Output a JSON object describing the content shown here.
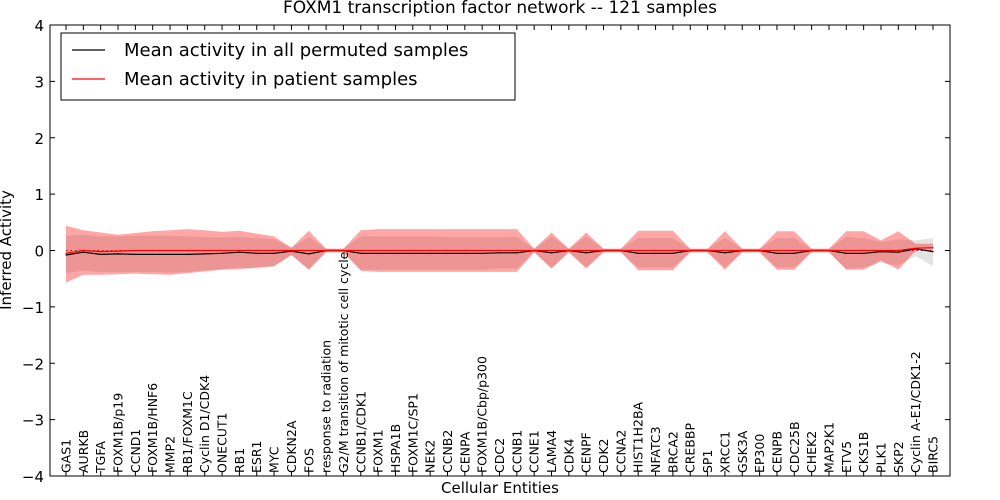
{
  "chart_data": {
    "type": "line",
    "title": "FOXM1 transcription factor network -- 121 samples",
    "xlabel": "Cellular Entities",
    "ylabel": "Inferred Activity",
    "ylim": [
      -4,
      4
    ],
    "yticks": [
      -4,
      -3,
      -2,
      -1,
      0,
      1,
      2,
      3,
      4
    ],
    "ytick_labels": [
      "−4",
      "−3",
      "−2",
      "−1",
      "0",
      "1",
      "2",
      "3",
      "4"
    ],
    "grid": false,
    "legend_position": "top-left",
    "categories": [
      "GAS1",
      "AURKB",
      "TGFA",
      "FOXM1B/p19",
      "CCND1",
      "FOXM1B/HNF6",
      "MMP2",
      "RB1/FOXM1C",
      "Cyclin D1/CDK4",
      "ONECUT1",
      "RB1",
      "ESR1",
      "MYC",
      "CDKN2A",
      "FOS",
      "response to radiation",
      "G2/M transition of mitotic cell cycle",
      "CCNB1/CDK1",
      "FOXM1",
      "HSPA1B",
      "FOXM1C/SP1",
      "NEK2",
      "CCNB2",
      "CENPA",
      "FOXM1B/Cbp/p300",
      "CDC2",
      "CCNB1",
      "CCNE1",
      "LAMA4",
      "CDK4",
      "CENPF",
      "CDK2",
      "CCNA2",
      "HIST1H2BA",
      "NFATC3",
      "BRCA2",
      "CREBBP",
      "SP1",
      "XRCC1",
      "GSK3A",
      "EP300",
      "CENPB",
      "CDC25B",
      "CHEK2",
      "MAP2K1",
      "ETV5",
      "CKS1B",
      "PLK1",
      "SKP2",
      "Cyclin A-E1/CDK1-2",
      "BIRC5"
    ],
    "series": [
      {
        "name": "Mean activity in all permuted samples",
        "color": "#000000",
        "values": [
          -0.08,
          -0.03,
          -0.07,
          -0.06,
          -0.07,
          -0.07,
          -0.07,
          -0.07,
          -0.06,
          -0.05,
          -0.03,
          -0.05,
          -0.05,
          -0.01,
          -0.06,
          0.0,
          0.0,
          -0.05,
          -0.05,
          -0.05,
          -0.05,
          -0.05,
          -0.05,
          -0.05,
          -0.05,
          -0.04,
          -0.04,
          0.0,
          -0.04,
          0.0,
          -0.04,
          0.0,
          0.0,
          -0.05,
          -0.05,
          -0.05,
          0.0,
          0.0,
          -0.04,
          0.0,
          0.0,
          -0.05,
          -0.05,
          0.0,
          0.0,
          -0.05,
          -0.05,
          -0.02,
          -0.03,
          0.03,
          -0.02
        ],
        "band_upper": [
          0.26,
          0.28,
          0.25,
          0.25,
          0.26,
          0.26,
          0.26,
          0.25,
          0.24,
          0.23,
          0.24,
          0.22,
          0.2,
          0.05,
          0.24,
          0.03,
          0.03,
          0.25,
          0.25,
          0.25,
          0.25,
          0.25,
          0.24,
          0.24,
          0.24,
          0.24,
          0.24,
          0.03,
          0.25,
          0.03,
          0.25,
          0.03,
          0.03,
          0.22,
          0.22,
          0.22,
          0.03,
          0.03,
          0.22,
          0.03,
          0.03,
          0.22,
          0.22,
          0.03,
          0.03,
          0.24,
          0.22,
          0.15,
          0.2,
          0.18,
          0.22
        ],
        "band_lower": [
          -0.4,
          -0.36,
          -0.38,
          -0.38,
          -0.38,
          -0.38,
          -0.39,
          -0.38,
          -0.35,
          -0.33,
          -0.3,
          -0.33,
          -0.28,
          -0.08,
          -0.33,
          -0.03,
          -0.03,
          -0.34,
          -0.34,
          -0.34,
          -0.34,
          -0.34,
          -0.34,
          -0.34,
          -0.34,
          -0.32,
          -0.32,
          -0.03,
          -0.32,
          -0.03,
          -0.3,
          -0.03,
          -0.03,
          -0.3,
          -0.3,
          -0.3,
          -0.03,
          -0.03,
          -0.3,
          -0.03,
          -0.03,
          -0.3,
          -0.3,
          -0.03,
          -0.03,
          -0.33,
          -0.3,
          -0.22,
          -0.26,
          -0.1,
          -0.28
        ]
      },
      {
        "name": "Mean activity in patient samples",
        "color": "#ff0000",
        "values": [
          -0.05,
          0.0,
          -0.02,
          -0.01,
          0.0,
          0.0,
          0.0,
          0.0,
          0.0,
          0.0,
          0.0,
          0.0,
          0.0,
          0.0,
          0.0,
          0.0,
          0.0,
          0.0,
          0.0,
          0.0,
          0.0,
          0.0,
          0.0,
          0.0,
          0.0,
          0.0,
          0.0,
          0.0,
          0.0,
          0.0,
          0.0,
          0.0,
          0.0,
          0.0,
          0.0,
          0.0,
          0.0,
          0.0,
          0.0,
          0.0,
          0.0,
          0.0,
          0.0,
          0.0,
          0.0,
          0.0,
          0.0,
          0.0,
          0.0,
          0.04,
          0.05
        ],
        "band_upper": [
          0.44,
          0.36,
          0.32,
          0.28,
          0.31,
          0.34,
          0.36,
          0.38,
          0.36,
          0.33,
          0.35,
          0.3,
          0.25,
          0.05,
          0.35,
          0.03,
          0.03,
          0.36,
          0.38,
          0.38,
          0.38,
          0.38,
          0.38,
          0.38,
          0.38,
          0.38,
          0.38,
          0.03,
          0.32,
          0.03,
          0.32,
          0.03,
          0.03,
          0.35,
          0.35,
          0.35,
          0.03,
          0.03,
          0.34,
          0.03,
          0.03,
          0.34,
          0.34,
          0.03,
          0.03,
          0.34,
          0.34,
          0.18,
          0.34,
          0.12,
          0.12
        ],
        "band_lower": [
          -0.57,
          -0.43,
          -0.43,
          -0.42,
          -0.41,
          -0.42,
          -0.43,
          -0.4,
          -0.37,
          -0.34,
          -0.33,
          -0.3,
          -0.28,
          -0.08,
          -0.34,
          -0.03,
          -0.03,
          -0.36,
          -0.38,
          -0.38,
          -0.38,
          -0.38,
          -0.38,
          -0.38,
          -0.38,
          -0.38,
          -0.38,
          -0.03,
          -0.32,
          -0.03,
          -0.32,
          -0.03,
          -0.03,
          -0.35,
          -0.35,
          -0.35,
          -0.03,
          -0.03,
          -0.34,
          -0.03,
          -0.03,
          -0.34,
          -0.34,
          -0.03,
          -0.03,
          -0.34,
          -0.34,
          -0.18,
          -0.34,
          0.0,
          0.02
        ]
      }
    ],
    "reference_line": {
      "y": 0,
      "style": "dotted",
      "color": "#ff0000"
    }
  }
}
